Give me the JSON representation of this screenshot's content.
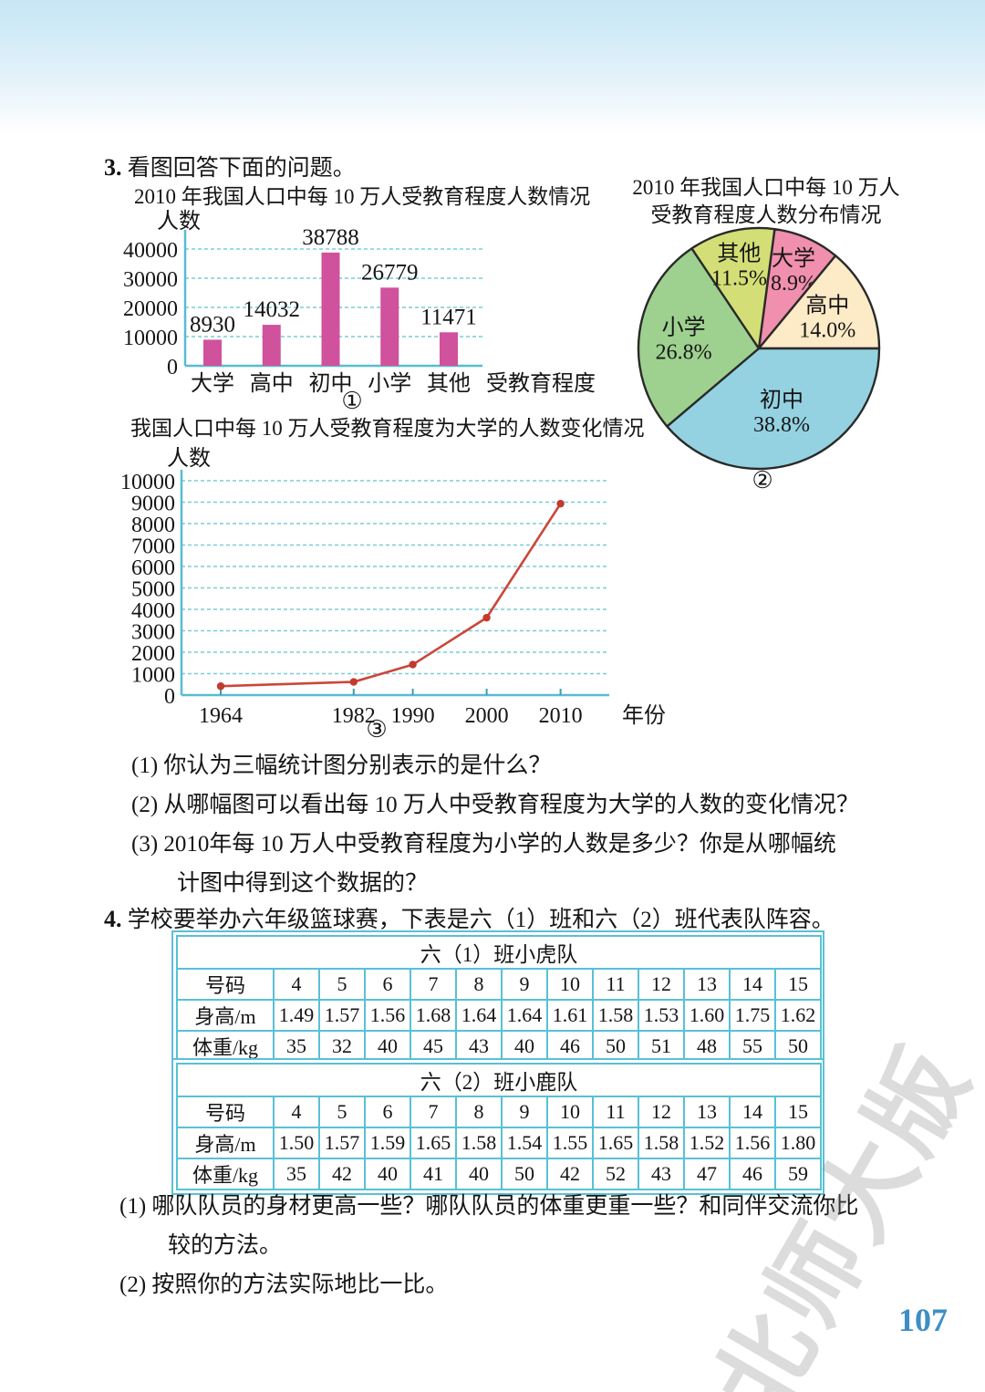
{
  "colors": {
    "bar_fill": "#d0519c",
    "grid": "#79cdda",
    "axis": "#56bdd2",
    "line": "#cc4639",
    "point": "#c13a2e",
    "pie_stroke": "#2a2a2a",
    "table_border": "#59c0d6",
    "page_number_color": "#3e8ec6",
    "text": "#151515"
  },
  "q3": {
    "number": "3.",
    "prompt": "看图回答下面的问题。",
    "sub1": "(1) 你认为三幅统计图分别表示的是什么？",
    "sub2": "(2) 从哪幅图可以看出每 10 万人中受教育程度为大学的人数的变化情况？",
    "sub3_line1": "(3) 2010年每 10 万人中受教育程度为小学的人数是多少？你是从哪幅统",
    "sub3_line2": "计图中得到这个数据的？"
  },
  "q4": {
    "number": "4.",
    "prompt": "学校要举办六年级篮球赛，下表是六（1）班和六（2）班代表队阵容。",
    "sub1_line1": "(1) 哪队队员的身材更高一些？哪队队员的体重更重一些？和同伴交流你比",
    "sub1_line2": "较的方法。",
    "sub2": "(2) 按照你的方法实际地比一比。"
  },
  "chart_data": [
    {
      "id": "bar",
      "type": "bar",
      "title": "2010 年我国人口中每 10 万人受教育程度人数情况",
      "ylabel": "人数",
      "xlabel": "受教育程度",
      "figure_label": "①",
      "categories": [
        "大学",
        "高中",
        "初中",
        "小学",
        "其他"
      ],
      "values": [
        8930,
        14032,
        38788,
        26779,
        11471
      ],
      "yticks": [
        0,
        10000,
        20000,
        30000,
        40000
      ],
      "ylim": [
        0,
        45000
      ],
      "grid": "dashed"
    },
    {
      "id": "pie",
      "type": "pie",
      "title_line1": "2010 年我国人口中每 10 万人",
      "title_line2": "受教育程度人数分布情况",
      "figure_label": "②",
      "slices": [
        {
          "label": "大学",
          "pct": 8.9,
          "pct_label": "8.9%",
          "color": "#f08fae"
        },
        {
          "label": "高中",
          "pct": 14.0,
          "pct_label": "14.0%",
          "color": "#fdeac6"
        },
        {
          "label": "初中",
          "pct": 38.8,
          "pct_label": "38.8%",
          "color": "#94d2e2"
        },
        {
          "label": "小学",
          "pct": 26.8,
          "pct_label": "26.8%",
          "color": "#9ed18f"
        },
        {
          "label": "其他",
          "pct": 11.5,
          "pct_label": "11.5%",
          "color": "#d3df76"
        }
      ]
    },
    {
      "id": "line",
      "type": "line",
      "title": "我国人口中每 10 万人受教育程度为大学的人数变化情况",
      "ylabel": "人数",
      "xlabel": "年份",
      "figure_label": "③",
      "x": [
        1964,
        1982,
        1990,
        2000,
        2010
      ],
      "values": [
        416,
        615,
        1422,
        3611,
        8930
      ],
      "yticks": [
        0,
        1000,
        2000,
        3000,
        4000,
        5000,
        6000,
        7000,
        8000,
        9000,
        10000
      ],
      "ylim": [
        0,
        10500
      ],
      "grid": "dashed"
    }
  ],
  "tables": [
    {
      "title": "六（1）班小虎队",
      "row_headers": [
        "号码",
        "身高/m",
        "体重/kg"
      ],
      "rows": [
        [
          "4",
          "5",
          "6",
          "7",
          "8",
          "9",
          "10",
          "11",
          "12",
          "13",
          "14",
          "15"
        ],
        [
          "1.49",
          "1.57",
          "1.56",
          "1.68",
          "1.64",
          "1.64",
          "1.61",
          "1.58",
          "1.53",
          "1.60",
          "1.75",
          "1.62"
        ],
        [
          "35",
          "32",
          "40",
          "45",
          "43",
          "40",
          "46",
          "50",
          "51",
          "48",
          "55",
          "50"
        ]
      ]
    },
    {
      "title": "六（2）班小鹿队",
      "row_headers": [
        "号码",
        "身高/m",
        "体重/kg"
      ],
      "rows": [
        [
          "4",
          "5",
          "6",
          "7",
          "8",
          "9",
          "10",
          "11",
          "12",
          "13",
          "14",
          "15"
        ],
        [
          "1.50",
          "1.57",
          "1.59",
          "1.65",
          "1.58",
          "1.54",
          "1.55",
          "1.65",
          "1.58",
          "1.52",
          "1.56",
          "1.80"
        ],
        [
          "35",
          "42",
          "40",
          "41",
          "40",
          "50",
          "42",
          "52",
          "43",
          "47",
          "46",
          "59"
        ]
      ]
    }
  ],
  "footer": {
    "page_number": "107",
    "watermark": "北师大版"
  }
}
